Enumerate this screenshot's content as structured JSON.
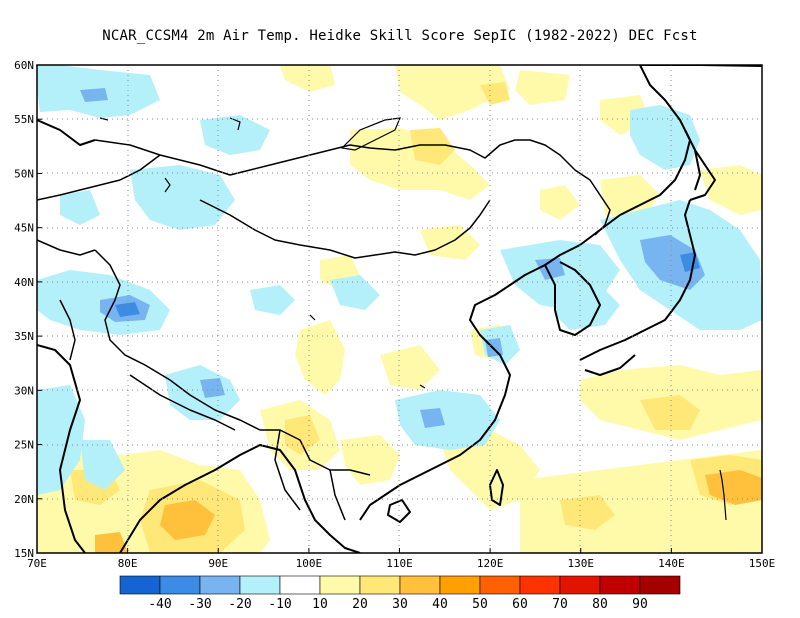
{
  "title": "NCAR_CCSM4  2m Air Temp. Heidke Skill Score SepIC (1982-2022) DEC Fcst",
  "map": {
    "lon_range": [
      70,
      150
    ],
    "lat_range": [
      15,
      60
    ],
    "lon_ticks": [
      "70E",
      "80E",
      "90E",
      "100E",
      "110E",
      "120E",
      "130E",
      "140E",
      "150E"
    ],
    "lat_ticks": [
      "15N",
      "20N",
      "25N",
      "30N",
      "35N",
      "40N",
      "45N",
      "50N",
      "55N",
      "60N"
    ],
    "grid": "dotted"
  },
  "colorbar": {
    "colors": [
      "#1464d2",
      "#3c8ce6",
      "#78b4f0",
      "#b4f0fa",
      "#ffffff",
      "#fffaaa",
      "#ffe878",
      "#ffc03c",
      "#ffa000",
      "#ff6000",
      "#ff3200",
      "#e11400",
      "#c00000",
      "#a50000"
    ],
    "labels": [
      "-40",
      "-30",
      "-20",
      "-10",
      "10",
      "20",
      "30",
      "40",
      "50",
      "60",
      "70",
      "80",
      "90"
    ]
  }
}
